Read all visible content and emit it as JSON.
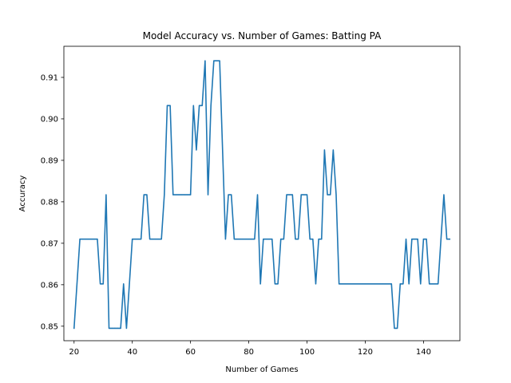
{
  "chart_data": {
    "type": "line",
    "title": "Model Accuracy vs. Number of Games: Batting PA",
    "xlabel": "Number of Games",
    "ylabel": "Accuracy",
    "xlim": [
      16.5,
      152.5
    ],
    "ylim": [
      0.8465,
      0.9175
    ],
    "xticks": [
      20,
      40,
      60,
      80,
      100,
      120,
      140
    ],
    "yticks": [
      0.85,
      0.86,
      0.87,
      0.88,
      0.89,
      0.9,
      0.91
    ],
    "ytick_labels": [
      "0.85",
      "0.86",
      "0.87",
      "0.88",
      "0.89",
      "0.90",
      "0.91"
    ],
    "grid": false,
    "line_color": "#1f77b4",
    "series": [
      {
        "x": [
          20,
          21,
          22,
          23,
          24,
          25,
          26,
          27,
          28,
          29,
          30,
          31,
          32,
          33,
          34,
          35,
          36,
          37,
          38,
          39,
          40,
          41,
          42,
          43,
          44,
          45,
          46,
          47,
          48,
          49,
          50,
          51,
          52,
          53,
          54,
          55,
          56,
          57,
          58,
          59,
          60,
          61,
          62,
          63,
          64,
          65,
          66,
          67,
          68,
          69,
          70,
          71,
          72,
          73,
          74,
          75,
          76,
          77,
          78,
          79,
          80,
          81,
          82,
          83,
          84,
          85,
          86,
          87,
          88,
          89,
          90,
          91,
          92,
          93,
          94,
          95,
          96,
          97,
          98,
          99,
          100,
          101,
          102,
          103,
          104,
          105,
          106,
          107,
          108,
          109,
          110,
          111,
          112,
          113,
          114,
          115,
          116,
          117,
          118,
          119,
          120,
          121,
          122,
          123,
          124,
          125,
          126,
          127,
          128,
          129,
          130,
          131,
          132,
          133,
          134,
          135,
          136,
          137,
          138,
          139,
          140,
          141,
          142,
          143,
          144,
          145,
          146,
          147,
          148,
          149
        ],
        "values": [
          0.8495,
          0.8602,
          0.871,
          0.871,
          0.871,
          0.871,
          0.871,
          0.871,
          0.871,
          0.8602,
          0.8602,
          0.8817,
          0.8495,
          0.8495,
          0.8495,
          0.8495,
          0.8495,
          0.8602,
          0.8495,
          0.8602,
          0.871,
          0.871,
          0.871,
          0.871,
          0.8817,
          0.8817,
          0.871,
          0.871,
          0.871,
          0.871,
          0.871,
          0.8817,
          0.9032,
          0.9032,
          0.8817,
          0.8817,
          0.8817,
          0.8817,
          0.8817,
          0.8817,
          0.8817,
          0.9032,
          0.8925,
          0.9032,
          0.9032,
          0.914,
          0.8817,
          0.9032,
          0.914,
          0.914,
          0.914,
          0.8925,
          0.871,
          0.8817,
          0.8817,
          0.871,
          0.871,
          0.871,
          0.871,
          0.871,
          0.871,
          0.871,
          0.871,
          0.8817,
          0.8602,
          0.871,
          0.871,
          0.871,
          0.871,
          0.8602,
          0.8602,
          0.871,
          0.871,
          0.8817,
          0.8817,
          0.8817,
          0.871,
          0.871,
          0.8817,
          0.8817,
          0.8817,
          0.871,
          0.871,
          0.8602,
          0.871,
          0.871,
          0.8925,
          0.8817,
          0.8817,
          0.8925,
          0.8817,
          0.8602,
          0.8602,
          0.8602,
          0.8602,
          0.8602,
          0.8602,
          0.8602,
          0.8602,
          0.8602,
          0.8602,
          0.8602,
          0.8602,
          0.8602,
          0.8602,
          0.8602,
          0.8602,
          0.8602,
          0.8602,
          0.8602,
          0.8495,
          0.8495,
          0.8602,
          0.8602,
          0.871,
          0.8602,
          0.871,
          0.871,
          0.871,
          0.8602,
          0.871,
          0.871,
          0.8602,
          0.8602,
          0.8602,
          0.8602,
          0.871,
          0.8817,
          0.871,
          0.871
        ]
      }
    ]
  }
}
